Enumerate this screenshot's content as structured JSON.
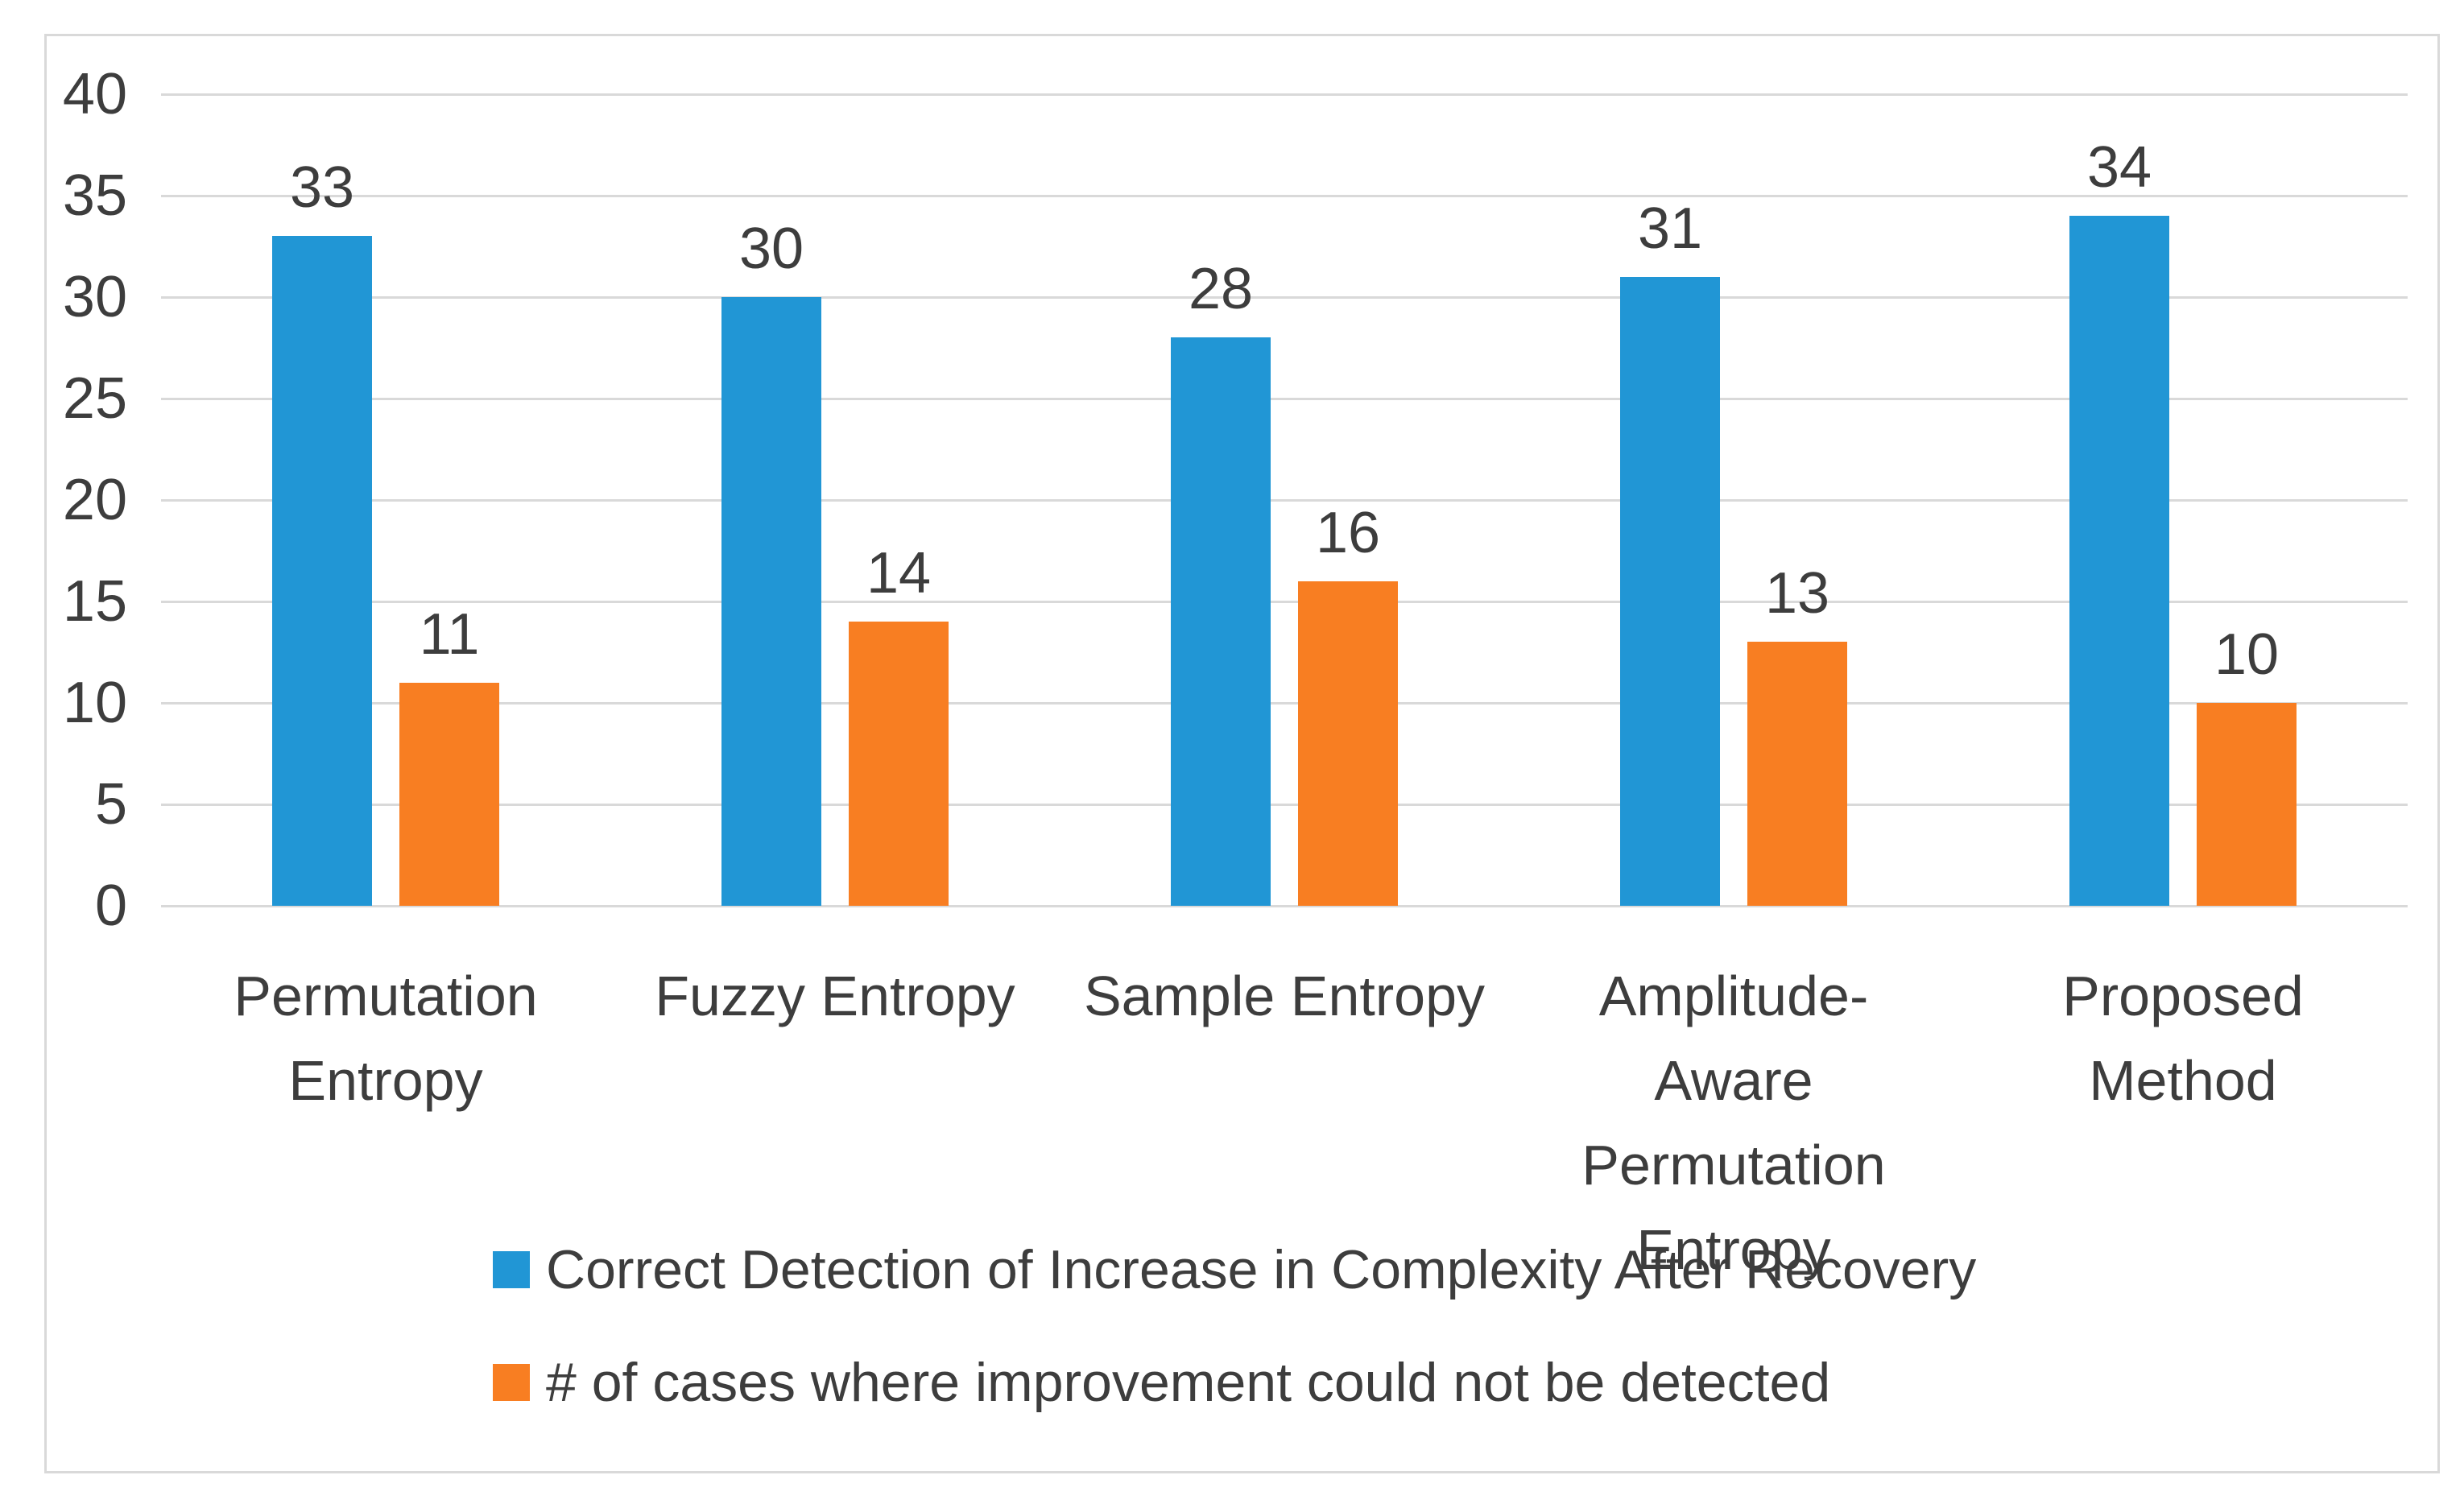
{
  "page": {
    "background": "#ffffff",
    "frame_border_color": "#d9d9d9"
  },
  "chart_data": {
    "type": "bar",
    "title": "",
    "xlabel": "",
    "ylabel": "",
    "categories": [
      "Permutation Entropy",
      "Fuzzy Entropy",
      "Sample Entropy",
      "Amplitude-Aware Permutation Entropy",
      "Proposed Method"
    ],
    "categories_wrapped": [
      "Permutation\nEntropy",
      "Fuzzy Entropy",
      "Sample Entropy",
      "Amplitude-Aware\nPermutation\nEntropy",
      "Proposed\nMethod"
    ],
    "series": [
      {
        "name": "Correct Detection of Increase in Complexity After Recovery",
        "color": "#2196d5",
        "values": [
          33,
          30,
          28,
          31,
          34
        ]
      },
      {
        "name": "# of cases where improvement could not be detected",
        "color": "#f87e22",
        "values": [
          11,
          14,
          16,
          13,
          10
        ]
      }
    ],
    "ylim": [
      0,
      40
    ],
    "ytick_step": 5,
    "ytick_labels": [
      "0",
      "5",
      "10",
      "15",
      "20",
      "25",
      "30",
      "35",
      "40"
    ],
    "grid": true,
    "gridline_color": "#d9d9d9",
    "label_color": "#3d3d3d",
    "data_labels": true,
    "legend_position": "bottom-left"
  }
}
